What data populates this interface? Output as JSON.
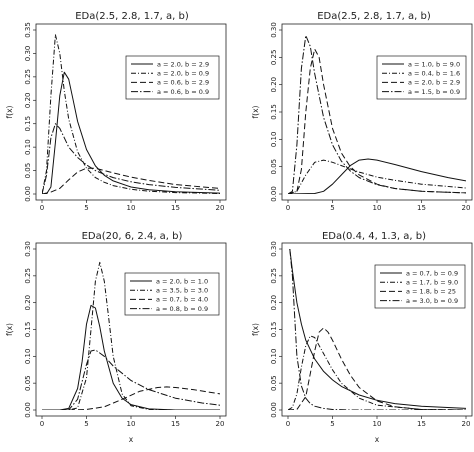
{
  "chart_data": [
    {
      "type": "line",
      "title": "EDa(2.5, 2.8, 1.7, a, b)",
      "xlabel": "",
      "ylabel": "f(x)",
      "xlim": [
        0,
        20
      ],
      "ylim": [
        0,
        0.35
      ],
      "xticks": [
        "0",
        "5",
        "10",
        "15",
        "20"
      ],
      "yticks": [
        "0.00",
        "0.05",
        "0.10",
        "0.15",
        "0.20",
        "0.25",
        "0.30",
        "0.35"
      ],
      "grid": false,
      "legend_position": "top-right",
      "series": [
        {
          "name": "a = 2.0, b = 2.9",
          "style": "solid",
          "x": [
            0,
            0.5,
            1,
            1.5,
            2,
            2.5,
            3,
            3.5,
            4,
            5,
            6,
            7,
            8,
            10,
            12,
            15,
            20
          ],
          "y": [
            0,
            0,
            0.015,
            0.11,
            0.21,
            0.26,
            0.245,
            0.2,
            0.155,
            0.095,
            0.06,
            0.04,
            0.028,
            0.015,
            0.009,
            0.005,
            0.002
          ]
        },
        {
          "name": "a = 2.0, b = 0.9",
          "style": "dashdot",
          "x": [
            0,
            0.5,
            1,
            1.5,
            2,
            2.5,
            3,
            4,
            5,
            6,
            7,
            8,
            10,
            12,
            15,
            20
          ],
          "y": [
            0,
            0.05,
            0.21,
            0.34,
            0.3,
            0.22,
            0.16,
            0.09,
            0.055,
            0.035,
            0.025,
            0.018,
            0.01,
            0.006,
            0.003,
            0.001
          ]
        },
        {
          "name": "a = 0.6, b = 2.9",
          "style": "dashed",
          "x": [
            0,
            1,
            2,
            3,
            4,
            5,
            6,
            7,
            8,
            10,
            12,
            15,
            20
          ],
          "y": [
            0,
            0.004,
            0.012,
            0.03,
            0.047,
            0.055,
            0.055,
            0.05,
            0.045,
            0.036,
            0.029,
            0.02,
            0.012
          ]
        },
        {
          "name": "a = 0.6, b = 0.9",
          "style": "dashdot2",
          "x": [
            0,
            0.5,
            1,
            1.5,
            2,
            2.5,
            3,
            4,
            5,
            6,
            7,
            8,
            10,
            12,
            15,
            20
          ],
          "y": [
            0,
            0.04,
            0.12,
            0.15,
            0.14,
            0.12,
            0.1,
            0.078,
            0.062,
            0.05,
            0.042,
            0.035,
            0.026,
            0.02,
            0.014,
            0.008
          ]
        }
      ]
    },
    {
      "type": "line",
      "title": "EDa(2.5, 2.8, 1.7, a, b)",
      "xlabel": "",
      "ylabel": "f(x)",
      "xlim": [
        0,
        20
      ],
      "ylim": [
        0,
        0.3
      ],
      "xticks": [
        "0",
        "5",
        "10",
        "15",
        "20"
      ],
      "yticks": [
        "0.00",
        "0.05",
        "0.10",
        "0.15",
        "0.20",
        "0.25",
        "0.30"
      ],
      "grid": false,
      "legend_position": "top-right",
      "series": [
        {
          "name": "a = 1.0, b = 9.0",
          "style": "solid",
          "x": [
            0,
            3,
            4,
            5,
            6,
            7,
            8,
            9,
            10,
            12,
            15,
            18,
            20
          ],
          "y": [
            0,
            0.001,
            0.005,
            0.018,
            0.035,
            0.052,
            0.062,
            0.064,
            0.062,
            0.054,
            0.041,
            0.03,
            0.024
          ]
        },
        {
          "name": "a = 0.4, b = 1.6",
          "style": "dashdot",
          "x": [
            0,
            1,
            2,
            3,
            4,
            5,
            6,
            7,
            8,
            10,
            12,
            15,
            20
          ],
          "y": [
            0,
            0.005,
            0.035,
            0.058,
            0.062,
            0.058,
            0.052,
            0.046,
            0.04,
            0.031,
            0.025,
            0.018,
            0.011
          ]
        },
        {
          "name": "a = 2.0, b = 2.9",
          "style": "dashed",
          "x": [
            0,
            1,
            1.5,
            2,
            2.5,
            3,
            3.5,
            4,
            5,
            6,
            7,
            8,
            10,
            12,
            15,
            20
          ],
          "y": [
            0,
            0.005,
            0.045,
            0.15,
            0.23,
            0.265,
            0.25,
            0.2,
            0.12,
            0.075,
            0.05,
            0.035,
            0.018,
            0.01,
            0.005,
            0.002
          ]
        },
        {
          "name": "a = 1.5, b = 0.9",
          "style": "dashdot2",
          "x": [
            0,
            0.5,
            1,
            1.5,
            2,
            2.5,
            3,
            4,
            5,
            6,
            7,
            8,
            10,
            12,
            15,
            20
          ],
          "y": [
            0,
            0.005,
            0.09,
            0.23,
            0.29,
            0.27,
            0.22,
            0.14,
            0.09,
            0.06,
            0.042,
            0.03,
            0.017,
            0.01,
            0.005,
            0.002
          ]
        }
      ]
    },
    {
      "type": "line",
      "title": "EDa(20, 6, 2.4, a, b)",
      "xlabel": "x",
      "ylabel": "f(x)",
      "xlim": [
        0,
        20
      ],
      "ylim": [
        0,
        0.3
      ],
      "xticks": [
        "0",
        "5",
        "10",
        "15",
        "20"
      ],
      "yticks": [
        "0.00",
        "0.05",
        "0.10",
        "0.15",
        "0.20",
        "0.25",
        "0.30"
      ],
      "grid": false,
      "legend_position": "top-right",
      "series": [
        {
          "name": "a = 2.0, b = 1.0",
          "style": "solid",
          "x": [
            0,
            2,
            3,
            4,
            4.5,
            5,
            5.5,
            6,
            6.5,
            7,
            8,
            9,
            10,
            12,
            15,
            20
          ],
          "y": [
            0,
            0,
            0.003,
            0.04,
            0.09,
            0.16,
            0.195,
            0.19,
            0.155,
            0.11,
            0.05,
            0.022,
            0.01,
            0.002,
            0,
            0
          ]
        },
        {
          "name": "a = 3.5, b = 3.0",
          "style": "dashdot",
          "x": [
            0,
            3,
            4,
            5,
            5.5,
            6,
            6.5,
            7,
            7.5,
            8,
            9,
            10,
            12,
            15,
            20
          ],
          "y": [
            0,
            0,
            0.004,
            0.06,
            0.15,
            0.24,
            0.275,
            0.24,
            0.17,
            0.1,
            0.03,
            0.008,
            0.001,
            0,
            0
          ]
        },
        {
          "name": "a = 0.7, b = 4.0",
          "style": "dashed",
          "x": [
            0,
            3,
            5,
            7,
            9,
            11,
            13,
            14,
            15,
            17,
            20
          ],
          "y": [
            0,
            0,
            0.001,
            0.006,
            0.02,
            0.035,
            0.042,
            0.043,
            0.042,
            0.038,
            0.03
          ]
        },
        {
          "name": "a = 0.8, b = 0.9",
          "style": "dashdot2",
          "x": [
            0,
            3,
            4,
            5,
            5.5,
            6,
            7,
            8,
            10,
            12,
            15,
            18,
            20
          ],
          "y": [
            0,
            0,
            0.02,
            0.085,
            0.11,
            0.112,
            0.1,
            0.082,
            0.055,
            0.038,
            0.022,
            0.013,
            0.009
          ]
        }
      ]
    },
    {
      "type": "line",
      "title": "EDa(0.4, 4, 1.3, a, b)",
      "xlabel": "x",
      "ylabel": "f(x)",
      "xlim": [
        0,
        20
      ],
      "ylim": [
        0,
        0.3
      ],
      "xticks": [
        "0",
        "5",
        "10",
        "15",
        "20"
      ],
      "yticks": [
        "0.00",
        "0.05",
        "0.10",
        "0.15",
        "0.20",
        "0.25",
        "0.30"
      ],
      "grid": false,
      "legend_position": "top-right",
      "series": [
        {
          "name": "a = 0.7, b = 0.9",
          "style": "solid",
          "x": [
            0.2,
            0.5,
            1,
            1.5,
            2,
            3,
            4,
            5,
            6,
            8,
            10,
            12,
            15,
            20
          ],
          "y": [
            0.3,
            0.26,
            0.2,
            0.16,
            0.13,
            0.095,
            0.072,
            0.056,
            0.044,
            0.028,
            0.018,
            0.012,
            0.007,
            0.003
          ]
        },
        {
          "name": "a = 1.7, b = 9.0",
          "style": "dashdot",
          "x": [
            0,
            0.5,
            1,
            1.5,
            2,
            2.5,
            3,
            4,
            5,
            6,
            8,
            10,
            15,
            20
          ],
          "y": [
            0,
            0.005,
            0.03,
            0.08,
            0.12,
            0.138,
            0.135,
            0.105,
            0.075,
            0.05,
            0.022,
            0.009,
            0.001,
            0
          ]
        },
        {
          "name": "a = 1.8, b = 25",
          "style": "dashed",
          "x": [
            0,
            1,
            2,
            3,
            3.5,
            4,
            4.5,
            5,
            6,
            7,
            8,
            10,
            12,
            15,
            20
          ],
          "y": [
            0,
            0.001,
            0.025,
            0.11,
            0.145,
            0.153,
            0.145,
            0.13,
            0.095,
            0.065,
            0.042,
            0.017,
            0.006,
            0.001,
            0
          ]
        },
        {
          "name": "a = 3.0, b = 0.9",
          "style": "dashdot2",
          "x": [
            0.2,
            0.5,
            0.8,
            1,
            1.5,
            2,
            2.5,
            3,
            4,
            5,
            7,
            10,
            15,
            20
          ],
          "y": [
            0.3,
            0.25,
            0.16,
            0.1,
            0.045,
            0.022,
            0.012,
            0.007,
            0.003,
            0.001,
            0,
            0,
            0,
            0
          ]
        }
      ]
    }
  ]
}
